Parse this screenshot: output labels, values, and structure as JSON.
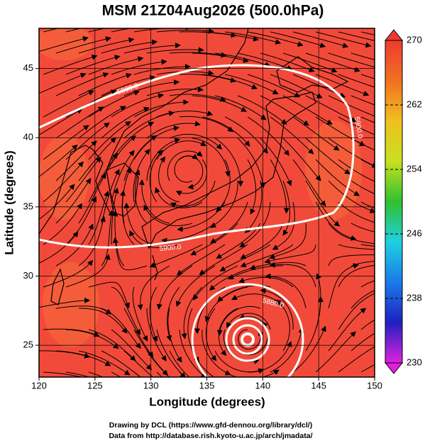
{
  "chart_data": {
    "type": "map",
    "title": "MSM 21Z04Aug2026 (500.0hPa)",
    "xlabel": "Longitude (degrees)",
    "ylabel": "Latitude  (degrees)",
    "xlim": [
      120,
      150
    ],
    "ylim": [
      22.7,
      47.9
    ],
    "xticks": [
      120,
      125,
      130,
      135,
      140,
      145,
      150
    ],
    "yticks": [
      25,
      30,
      35,
      40,
      45
    ],
    "grid": true,
    "fill_color": "#f24a3a",
    "colorbar": {
      "lim": [
        230,
        270
      ],
      "ticks": [
        230,
        238,
        246,
        254,
        262,
        270
      ],
      "colors": [
        "#e020e0",
        "#2020c0",
        "#1a7ae8",
        "#20d0e0",
        "#30c030",
        "#c8e020",
        "#f0c020",
        "#f07020",
        "#f03a30"
      ]
    },
    "contour_labels": [
      "5900.0",
      "5900.0",
      "5900.0",
      "5880.0"
    ],
    "credits": [
      "Drawing by DCL (https://www.gfd-dennou.org/library/dcl/)",
      "Data from http://database.rish.kyoto-u.ac.jp/arch/jmadata/"
    ]
  }
}
